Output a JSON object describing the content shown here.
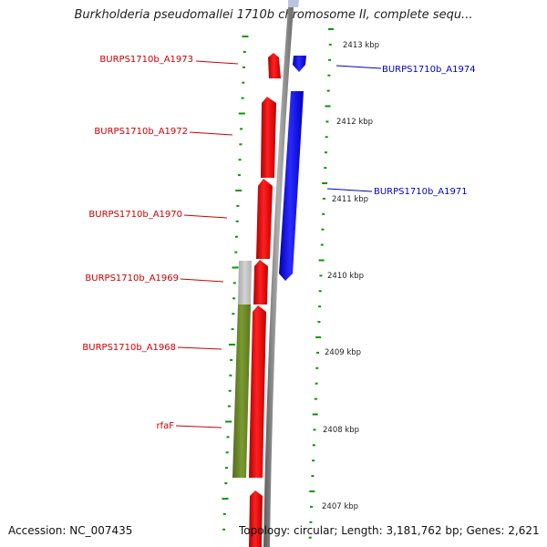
{
  "title": "Burkholderia pseudomallei 1710b chromosome II, complete sequ...",
  "colors": {
    "reverse_gene": "#ff0000",
    "forward_gene": "#0000ff",
    "backbone": "#808080",
    "tick": "#009900",
    "feature_gray": "#c0c0c0",
    "feature_olive": "#6b8e23"
  },
  "scale_labels": [
    "2413 kbp",
    "2412 kbp",
    "2411 kbp",
    "2410 kbp",
    "2409 kbp",
    "2408 kbp",
    "2407 kbp"
  ],
  "reverse_genes": [
    "BURPS1710b_A1973",
    "BURPS1710b_A1972",
    "BURPS1710b_A1970",
    "BURPS1710b_A1969",
    "BURPS1710b_A1968",
    "rfaF"
  ],
  "forward_genes": [
    "BURPS1710b_A1974",
    "BURPS1710b_A1971"
  ],
  "footer": {
    "accession": "Accession: NC_007435",
    "topology": "Topology: circular; Length: 3,181,762 bp; Genes: 2,621"
  }
}
